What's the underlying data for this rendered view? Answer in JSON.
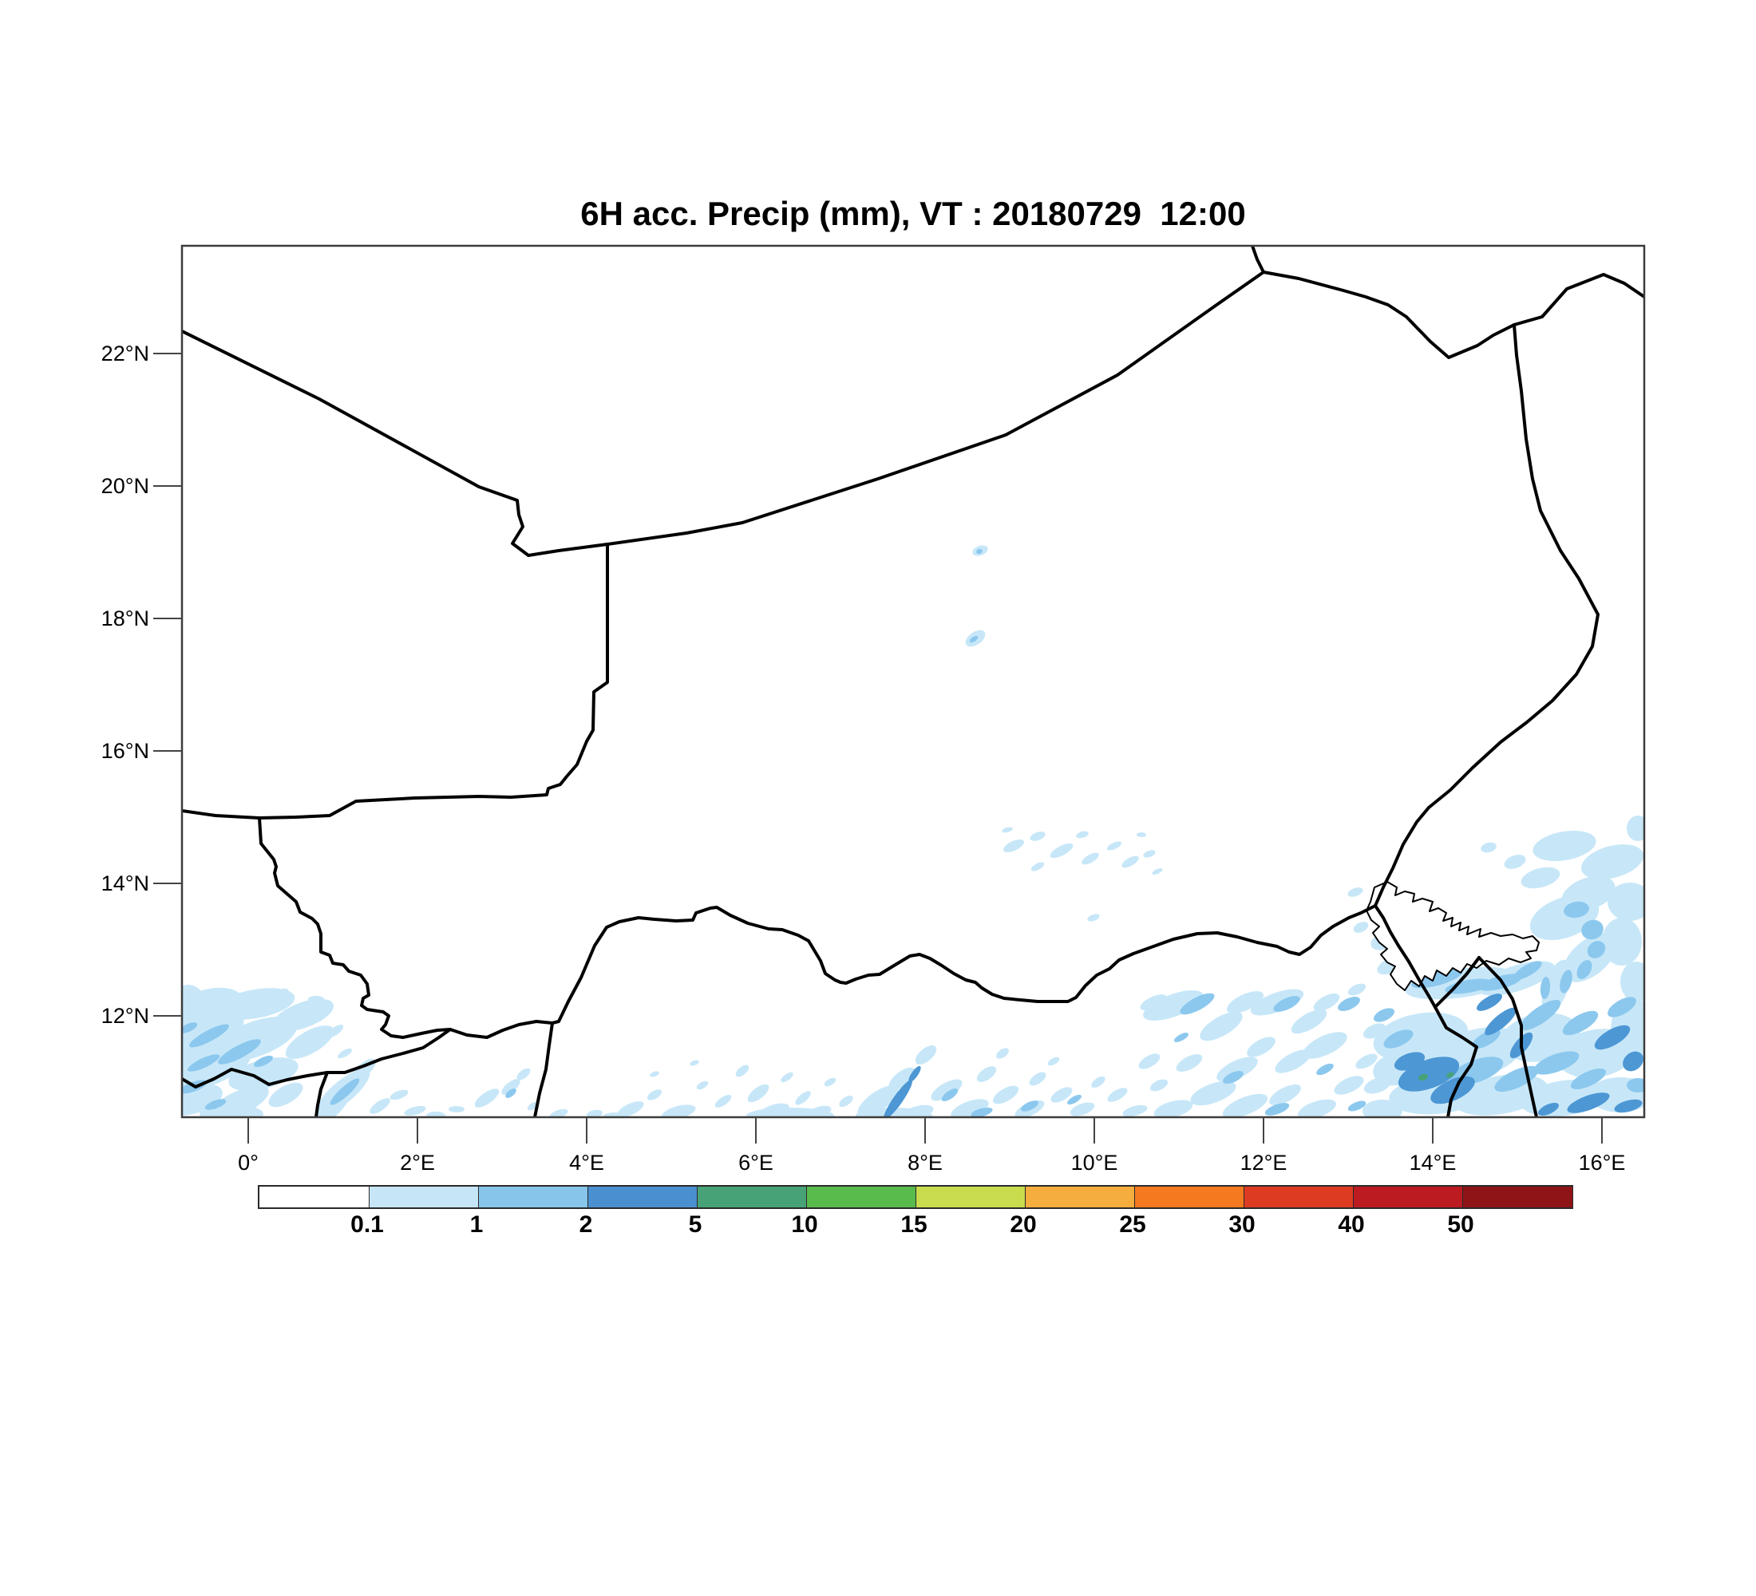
{
  "title": "6H acc. Precip (mm), VT : 20180729  12:00",
  "map": {
    "lat_labels": [
      "22°N",
      "20°N",
      "18°N",
      "16°N",
      "14°N",
      "12°N"
    ],
    "lon_labels": [
      "0°",
      "2°E",
      "4°E",
      "6°E",
      "8°E",
      "10°E",
      "12°E",
      "14°E",
      "16°E"
    ]
  },
  "colorbar": {
    "unit": "mm",
    "labels": [
      "0.1",
      "1",
      "2",
      "5",
      "10",
      "15",
      "20",
      "25",
      "30",
      "40",
      "50"
    ],
    "colors": [
      "#ffffff",
      "#c6e6f8",
      "#87c5eb",
      "#4a90d0",
      "#47a377",
      "#5abb4d",
      "#c8dc4e",
      "#f5ad3d",
      "#f5791f",
      "#de3b23",
      "#bb1b21",
      "#8e1418"
    ]
  },
  "chart_data": {
    "type": "heatmap",
    "title": "6H acc. Precip (mm), VT : 20180729  12:00",
    "variable": "6-hour accumulated precipitation",
    "unit": "mm",
    "valid_time": "20180729 12:00",
    "x_axis": {
      "label": "longitude",
      "ticks": [
        "0°",
        "2°E",
        "4°E",
        "6°E",
        "8°E",
        "10°E",
        "12°E",
        "14°E",
        "16°E"
      ],
      "range_deg": [
        -0.8,
        16.5
      ]
    },
    "y_axis": {
      "label": "latitude",
      "ticks": [
        "22°N",
        "20°N",
        "18°N",
        "16°N",
        "14°N",
        "12°N"
      ],
      "range_deg": [
        10.5,
        23.7
      ]
    },
    "color_scale": {
      "levels_mm": [
        0.1,
        1,
        2,
        5,
        10,
        15,
        20,
        25,
        30,
        40,
        50
      ],
      "colors": [
        "#ffffff",
        "#c6e6f8",
        "#87c5eb",
        "#4a90d0",
        "#47a377",
        "#5abb4d",
        "#c8dc4e",
        "#f5ad3d",
        "#f5791f",
        "#de3b23",
        "#bb1b21",
        "#8e1418"
      ]
    },
    "legend_position": "bottom",
    "grid": "off",
    "map_features": [
      "country borders (Niger, Mali, Algeria, Libya, Chad, Nigeria, Benin, Burkina Faso, Togo, Cameroon)",
      "Lake Chad outline drawn white"
    ],
    "precip_regions": [
      {
        "area": "southwest corner, lon -0.8 to 2E, lat 11 to 12.5N",
        "intensity_mm": "0.1-1 widespread with 1-2 streaks"
      },
      {
        "area": "southern band, lon 4 to 10E, lat 10.5 to 12N",
        "intensity_mm": "scattered 0.1-1 cells"
      },
      {
        "area": "diagonal streaks lon 7 to 8E, lat 10.5 to 11.5N",
        "intensity_mm": "2-5"
      },
      {
        "area": "lon 10.5 to 13E, lat 11 to 13N",
        "intensity_mm": "0.1-2 patches"
      },
      {
        "area": "around and northeast of Lake Chad, lon 13.5 to 16.5E, lat 12.5 to 14.5N",
        "intensity_mm": "0.1-5 with 1-2 crescent east of lake"
      },
      {
        "area": "southeast corner, lon 13.5 to 16.5E, lat 10.5 to 12.5N",
        "intensity_mm": "1-10, small 5-10 cores southwest of lake"
      },
      {
        "area": "isolated cells near lon 8.6E at lat 19N and 17.7N",
        "intensity_mm": "0.1-2"
      },
      {
        "area": "faint cluster lon 9 to 10.8E, lat 14 to 14.9N",
        "intensity_mm": "0.1-1"
      }
    ]
  }
}
